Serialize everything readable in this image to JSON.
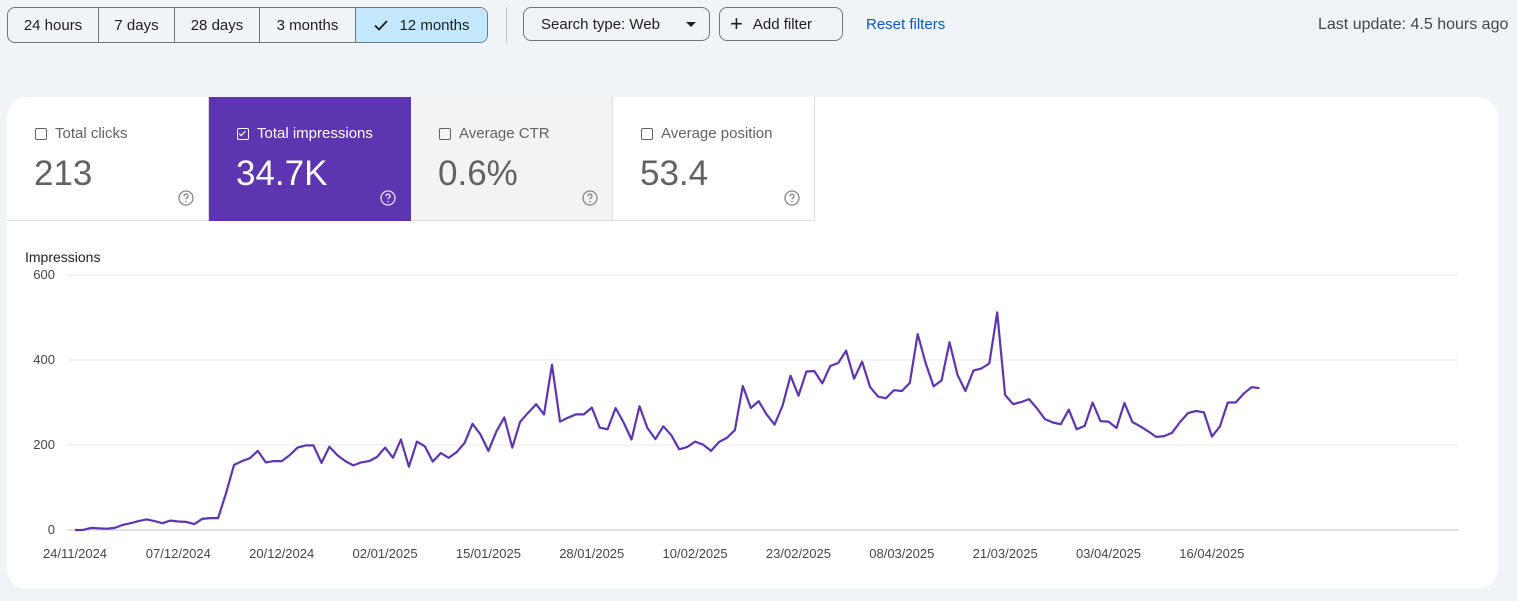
{
  "filters": {
    "ranges": [
      "24 hours",
      "7 days",
      "28 days",
      "3 months",
      "12 months"
    ],
    "active_range": "12 months",
    "search_type": "Search type: Web",
    "add_filter": "Add filter",
    "reset_filters": "Reset filters",
    "last_update": "Last update: 4.5 hours ago"
  },
  "metrics": {
    "clicks": {
      "label": "Total clicks",
      "value": "213",
      "checked": false
    },
    "impressions": {
      "label": "Total impressions",
      "value": "34.7K",
      "checked": true
    },
    "ctr": {
      "label": "Average CTR",
      "value": "0.6%",
      "checked": false
    },
    "position": {
      "label": "Average position",
      "value": "53.4",
      "checked": false
    }
  },
  "colors": {
    "accent": "#5e35b1",
    "active_range_bg": "#c2e7ff",
    "link": "#0b57d0"
  },
  "chart_data": {
    "type": "line",
    "ylabel": "Impressions",
    "ylim": [
      0,
      600
    ],
    "yticks": [
      0,
      200,
      400,
      600
    ],
    "x_tick_labels": [
      "24/11/2024",
      "07/12/2024",
      "20/12/2024",
      "02/01/2025",
      "15/01/2025",
      "28/01/2025",
      "10/02/2025",
      "23/02/2025",
      "08/03/2025",
      "21/03/2025",
      "03/04/2025",
      "16/04/2025"
    ],
    "x_start": "24/11/2024",
    "x_end": "23/04/2025",
    "grid": true,
    "series": [
      {
        "color": "#5e35b1",
        "values": [
          0,
          0,
          5,
          4,
          3,
          5,
          12,
          16,
          21,
          25,
          21,
          16,
          22,
          20,
          19,
          14,
          26,
          28,
          28,
          87,
          153,
          162,
          169,
          186,
          159,
          162,
          162,
          176,
          194,
          199,
          199,
          158,
          196,
          176,
          162,
          152,
          159,
          162,
          172,
          194,
          170,
          213,
          149,
          208,
          197,
          161,
          181,
          170,
          183,
          205,
          250,
          225,
          186,
          232,
          265,
          194,
          255,
          276,
          296,
          272,
          389,
          255,
          264,
          272,
          272,
          288,
          241,
          237,
          287,
          253,
          213,
          291,
          240,
          214,
          244,
          223,
          190,
          195,
          208,
          201,
          186,
          207,
          217,
          235,
          339,
          287,
          303,
          272,
          248,
          293,
          363,
          316,
          373,
          374,
          345,
          386,
          393,
          422,
          356,
          396,
          337,
          314,
          310,
          329,
          327,
          346,
          461,
          393,
          338,
          352,
          442,
          365,
          327,
          375,
          380,
          392,
          512,
          318,
          296,
          301,
          308,
          286,
          261,
          253,
          249,
          283,
          237,
          245,
          300,
          256,
          255,
          240,
          299,
          254,
          244,
          232,
          219,
          221,
          229,
          254,
          275,
          280,
          277,
          220,
          243,
          300,
          300,
          321,
          336,
          334
        ]
      }
    ]
  }
}
